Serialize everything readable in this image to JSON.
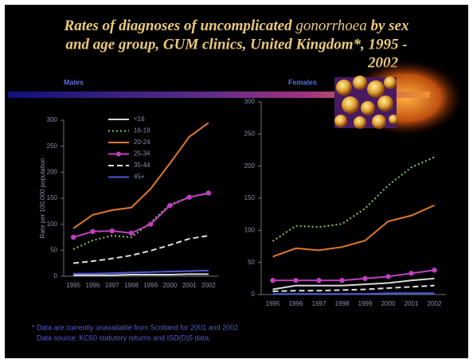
{
  "title_parts": [
    "Rates of diagnoses of uncomplicated ",
    "gonorrhoea",
    " by sex",
    "and age group, GUM clinics, United Kingdom*, 1995 -",
    "2002"
  ],
  "footnotes": [
    "* Data are currently unavailable from Scotland for 2001 and 2002",
    "Data source: KC60 statutory returns and ISD(D)5 data."
  ],
  "chart_data": [
    {
      "type": "line",
      "title": "Males",
      "y_label": "Rate per 100,000 population",
      "categories": [
        "1995",
        "1996",
        "1997",
        "1998",
        "1999",
        "2000",
        "2001",
        "2002"
      ],
      "ylim": [
        0,
        300
      ],
      "yticks": [
        0,
        50,
        100,
        150,
        200,
        250,
        300
      ],
      "legend": "upper left",
      "series": [
        {
          "name": "<16",
          "color": "#d8d8d8",
          "style": "solid",
          "values": [
            2,
            2,
            2,
            3,
            3,
            3,
            4,
            4
          ]
        },
        {
          "name": "16-19",
          "color": "#8cc060",
          "style": "dotted",
          "values": [
            52,
            69,
            78,
            75,
            103,
            138,
            152,
            159
          ]
        },
        {
          "name": "20-24",
          "color": "#e07828",
          "style": "solid",
          "values": [
            92,
            118,
            127,
            132,
            168,
            217,
            268,
            295
          ]
        },
        {
          "name": "25-34",
          "color": "#c040c0",
          "style": "solid",
          "marker": "circle",
          "values": [
            75,
            86,
            87,
            83,
            100,
            136,
            152,
            160
          ]
        },
        {
          "name": "35-44",
          "color": "#e0e0e0",
          "style": "dashed",
          "values": [
            25,
            29,
            34,
            40,
            49,
            60,
            72,
            78
          ]
        },
        {
          "name": "45+",
          "color": "#5058d8",
          "style": "solid",
          "values": [
            5,
            5,
            6,
            7,
            8,
            9,
            10,
            11
          ]
        }
      ]
    },
    {
      "type": "line",
      "title": "Females",
      "categories": [
        "1995",
        "1996",
        "1997",
        "1998",
        "1999",
        "2000",
        "2001",
        "2002"
      ],
      "ylim": [
        0,
        300
      ],
      "yticks": [
        0,
        50,
        100,
        150,
        200,
        250,
        300
      ],
      "series": [
        {
          "color": "#d8d8d8",
          "style": "solid",
          "values": [
            8,
            14,
            14,
            14,
            16,
            18,
            22,
            25
          ]
        },
        {
          "color": "#8cc060",
          "style": "dotted",
          "values": [
            83,
            107,
            105,
            110,
            134,
            170,
            198,
            214
          ]
        },
        {
          "color": "#e07828",
          "style": "solid",
          "values": [
            59,
            72,
            69,
            74,
            84,
            114,
            123,
            139
          ]
        },
        {
          "color": "#c040c0",
          "style": "solid",
          "marker": "circle",
          "values": [
            22,
            22,
            22,
            22,
            25,
            28,
            33,
            38
          ]
        },
        {
          "color": "#e0e0e0",
          "style": "dashed",
          "values": [
            5,
            6,
            6,
            7,
            8,
            10,
            12,
            14
          ]
        },
        {
          "color": "#5058d8",
          "style": "solid",
          "values": [
            1,
            1,
            1,
            1,
            1,
            2,
            2,
            2
          ]
        }
      ]
    }
  ]
}
